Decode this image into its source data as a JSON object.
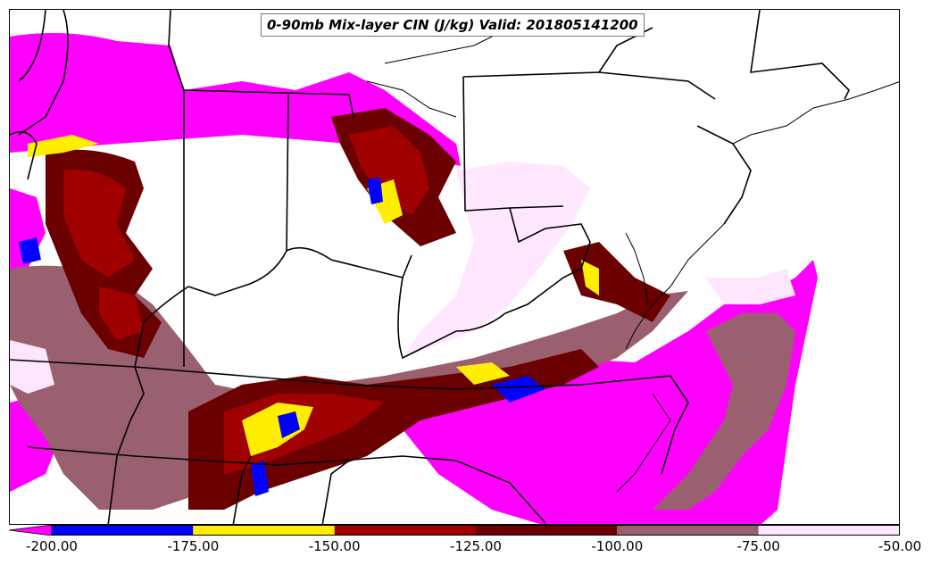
{
  "title": "0-90mb Mix-layer CIN (J/kg) Valid: 201805141200",
  "colorbar": {
    "tick_labels": [
      "-200.00",
      "-175.00",
      "-150.00",
      "-125.00",
      "-100.00",
      "-75.00",
      "-50.00"
    ],
    "bins": [
      {
        "from": -200,
        "to": -175,
        "color": "#0000ff"
      },
      {
        "from": -175,
        "to": -150,
        "color": "#ffee00"
      },
      {
        "from": -150,
        "to": -125,
        "color": "#a00000"
      },
      {
        "from": -125,
        "to": -100,
        "color": "#6a0000"
      },
      {
        "from": -100,
        "to": -75,
        "color": "#9a6070"
      },
      {
        "from": -75,
        "to": -50,
        "color": "#ffe6ff"
      }
    ],
    "underflow_color": "#ff00ff"
  },
  "colors": {
    "below_min": "#ff00ff",
    "map_background": "#ffffff",
    "borders": "#000000"
  }
}
